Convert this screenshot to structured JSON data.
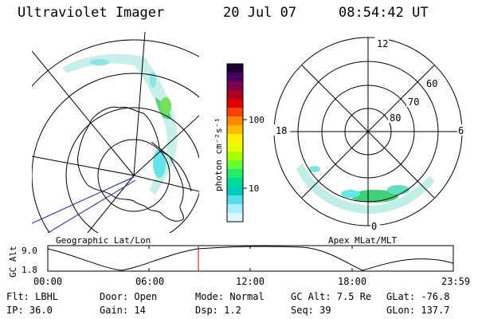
{
  "header": {
    "title": "Ultraviolet Imager",
    "date": "20 Jul 07",
    "time": "08:54:42 UT"
  },
  "colorbar": {
    "unit_label": "photon cm⁻²s⁻¹",
    "ticks": [
      "100",
      "10"
    ],
    "colors": [
      "#1a0033",
      "#4a0060",
      "#7a0050",
      "#b00020",
      "#e00000",
      "#ff4000",
      "#ff8800",
      "#ffbb00",
      "#ffee00",
      "#e6ff00",
      "#aaff00",
      "#66ff33",
      "#22ee66",
      "#00dd99",
      "#00ccbb",
      "#55ddee",
      "#aaeeff",
      "#ddf6ff"
    ]
  },
  "left_panel": {
    "caption": "Geographic Lat/Lon"
  },
  "right_panel": {
    "caption": "Apex MLat/MLT",
    "mlt_labels": {
      "top": "12",
      "left": "18",
      "right": "6",
      "bottom": "0"
    },
    "lat_labels": [
      "60",
      "70",
      "80"
    ]
  },
  "timeline": {
    "ylabel": "GC Alt",
    "yticks": [
      "9.0",
      "1.8"
    ],
    "xticks": [
      "00:00",
      "06:00",
      "12:00",
      "18:00",
      "23:59"
    ],
    "current_marker_time": "08:54"
  },
  "status": {
    "filter": "Flt: LBHL",
    "ip": "IP: 36.0",
    "door": "Door: Open",
    "gain": "Gain: 14",
    "mode": "Mode: Normal",
    "dsp": "Dsp:    1.2",
    "gc_alt": "GC Alt: 7.5 Re",
    "seq": "Seq: 39",
    "glat": "GLat: -76.8",
    "glon": "GLon: 137.7"
  },
  "accent_colors": {
    "marker": "#cc0000",
    "track": "#1a1aaa",
    "aurora": "#33cc99"
  }
}
